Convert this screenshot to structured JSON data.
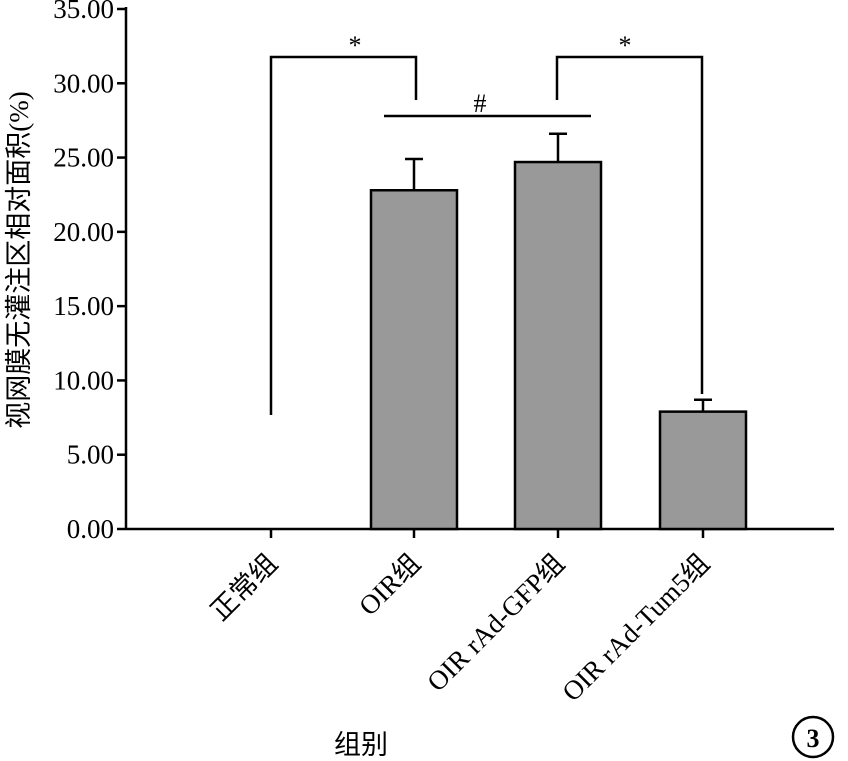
{
  "chart_data": {
    "type": "bar",
    "xlabel": "组别",
    "ylabel": "视网膜无灌注区相对面积(%)",
    "ylim": [
      0,
      35
    ],
    "yticks": [
      "0.00",
      "5.00",
      "10.00",
      "15.00",
      "20.00",
      "25.00",
      "30.00",
      "35.00"
    ],
    "categories": [
      "正常组",
      "OIR组",
      "OIR rAd-GFP组",
      "OIR rAd-Tum5组"
    ],
    "values": [
      0,
      22.8,
      24.7,
      7.9
    ],
    "errors": [
      0,
      2.1,
      1.9,
      0.8
    ],
    "bar_color": "#999999",
    "grid": false,
    "legend": "none",
    "annotations": [
      {
        "text": "*",
        "between": [
          "正常组",
          "OIR组"
        ]
      },
      {
        "text": "#",
        "between": [
          "OIR组",
          "OIR rAd-GFP组"
        ]
      },
      {
        "text": "*",
        "between": [
          "OIR rAd-GFP组",
          "OIR rAd-Tum5组"
        ]
      }
    ],
    "panel_label": "3"
  }
}
